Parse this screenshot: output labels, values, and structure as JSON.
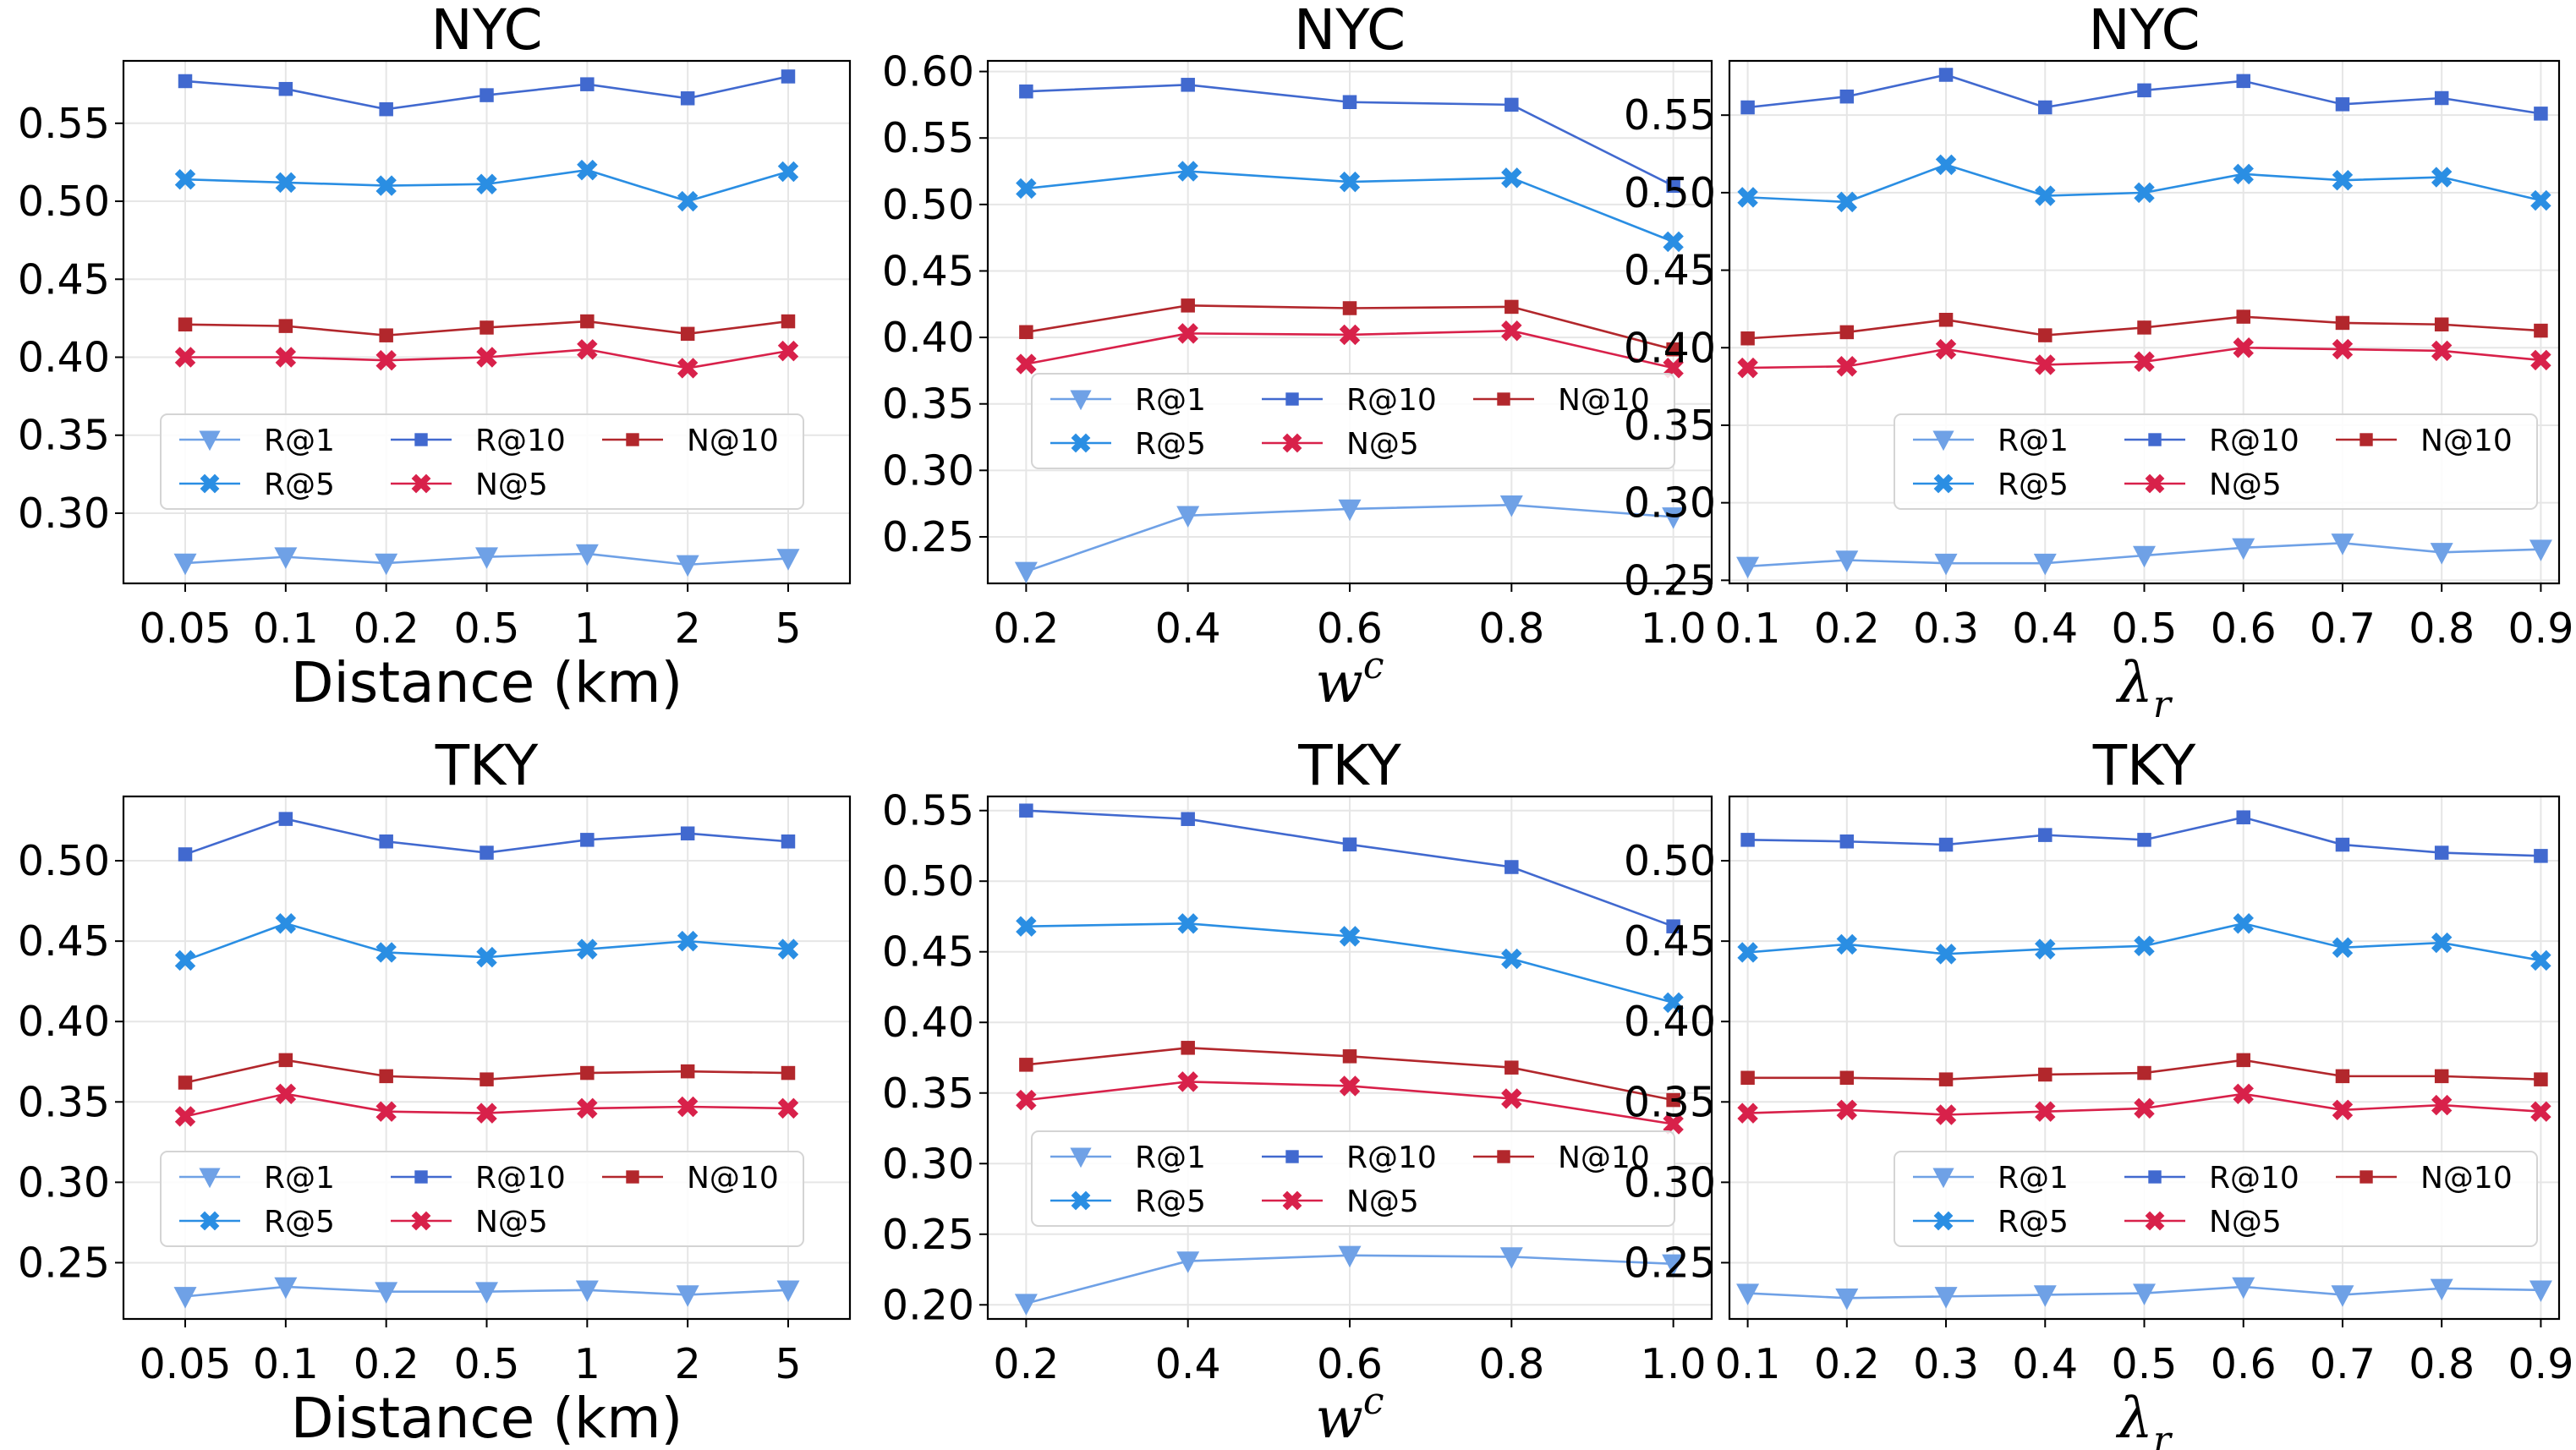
{
  "colors": {
    "r1": "#6fa1e6",
    "r5": "#2a8ee3",
    "r10": "#4169cf",
    "n10": "#b2272c",
    "n5": "#d8214a",
    "grid": "#e6e6e6"
  },
  "chart_data": [
    {
      "type": "line",
      "title": "NYC",
      "xlabel": "Distance (km)",
      "x_label_style": "plain",
      "categories": [
        "0.05",
        "0.1",
        "0.2",
        "0.5",
        "1",
        "2",
        "5"
      ],
      "ylim": [
        0.255,
        0.59
      ],
      "yticks": [
        "0.30",
        "0.35",
        "0.40",
        "0.45",
        "0.50",
        "0.55"
      ],
      "legend": "lower-center",
      "grid": true,
      "series": [
        {
          "name": "R@1",
          "key": "r1",
          "marker": "triangle",
          "values": [
            0.268,
            0.272,
            0.268,
            0.272,
            0.274,
            0.267,
            0.271
          ]
        },
        {
          "name": "R@5",
          "key": "r5",
          "marker": "x",
          "values": [
            0.514,
            0.512,
            0.51,
            0.511,
            0.52,
            0.5,
            0.519
          ]
        },
        {
          "name": "R@10",
          "key": "r10",
          "marker": "square",
          "values": [
            0.577,
            0.572,
            0.559,
            0.568,
            0.575,
            0.566,
            0.58
          ]
        },
        {
          "name": "N@5",
          "key": "n5",
          "marker": "x",
          "values": [
            0.4,
            0.4,
            0.398,
            0.4,
            0.405,
            0.393,
            0.404
          ]
        },
        {
          "name": "N@10",
          "key": "n10",
          "marker": "square",
          "values": [
            0.421,
            0.42,
            0.414,
            0.419,
            0.423,
            0.415,
            0.423
          ]
        }
      ]
    },
    {
      "type": "line",
      "title": "NYC",
      "xlabel": "w",
      "xlabel_sup": "c",
      "x_label_style": "math",
      "categories": [
        "0.2",
        "0.4",
        "0.6",
        "0.8",
        "1.0"
      ],
      "ylim": [
        0.215,
        0.608
      ],
      "yticks": [
        "0.25",
        "0.30",
        "0.35",
        "0.40",
        "0.45",
        "0.50",
        "0.55",
        "0.60"
      ],
      "legend": "center",
      "grid": true,
      "series": [
        {
          "name": "R@1",
          "key": "r1",
          "marker": "triangle",
          "values": [
            0.224,
            0.266,
            0.271,
            0.274,
            0.265
          ]
        },
        {
          "name": "R@5",
          "key": "r5",
          "marker": "x",
          "values": [
            0.512,
            0.525,
            0.517,
            0.52,
            0.472
          ]
        },
        {
          "name": "R@10",
          "key": "r10",
          "marker": "square",
          "values": [
            0.585,
            0.59,
            0.577,
            0.575,
            0.514
          ]
        },
        {
          "name": "N@5",
          "key": "n5",
          "marker": "x",
          "values": [
            0.38,
            0.403,
            0.402,
            0.405,
            0.377
          ]
        },
        {
          "name": "N@10",
          "key": "n10",
          "marker": "square",
          "values": [
            0.404,
            0.424,
            0.422,
            0.423,
            0.391
          ]
        }
      ]
    },
    {
      "type": "line",
      "title": "NYC",
      "xlabel": "λ",
      "xlabel_sub": "r",
      "x_label_style": "math",
      "categories": [
        "0.1",
        "0.2",
        "0.3",
        "0.4",
        "0.5",
        "0.6",
        "0.7",
        "0.8",
        "0.9"
      ],
      "ylim": [
        0.248,
        0.585
      ],
      "yticks": [
        "0.25",
        "0.30",
        "0.35",
        "0.40",
        "0.45",
        "0.50",
        "0.55"
      ],
      "legend": "lower-center",
      "grid": true,
      "series": [
        {
          "name": "R@1",
          "key": "r1",
          "marker": "triangle",
          "values": [
            0.259,
            0.263,
            0.261,
            0.261,
            0.266,
            0.271,
            0.274,
            0.268,
            0.27
          ]
        },
        {
          "name": "R@5",
          "key": "r5",
          "marker": "x",
          "values": [
            0.497,
            0.494,
            0.518,
            0.498,
            0.5,
            0.512,
            0.508,
            0.51,
            0.495
          ]
        },
        {
          "name": "R@10",
          "key": "r10",
          "marker": "square",
          "values": [
            0.555,
            0.562,
            0.576,
            0.555,
            0.566,
            0.572,
            0.557,
            0.561,
            0.551
          ]
        },
        {
          "name": "N@5",
          "key": "n5",
          "marker": "x",
          "values": [
            0.387,
            0.388,
            0.399,
            0.389,
            0.391,
            0.4,
            0.399,
            0.398,
            0.392
          ]
        },
        {
          "name": "N@10",
          "key": "n10",
          "marker": "square",
          "values": [
            0.406,
            0.41,
            0.418,
            0.408,
            0.413,
            0.42,
            0.416,
            0.415,
            0.411
          ]
        }
      ]
    },
    {
      "type": "line",
      "title": "TKY",
      "xlabel": "Distance (km)",
      "x_label_style": "plain",
      "categories": [
        "0.05",
        "0.1",
        "0.2",
        "0.5",
        "1",
        "2",
        "5"
      ],
      "ylim": [
        0.215,
        0.54
      ],
      "yticks": [
        "0.25",
        "0.30",
        "0.35",
        "0.40",
        "0.45",
        "0.50"
      ],
      "legend": "lower-center",
      "grid": true,
      "series": [
        {
          "name": "R@1",
          "key": "r1",
          "marker": "triangle",
          "values": [
            0.229,
            0.235,
            0.232,
            0.232,
            0.233,
            0.23,
            0.233
          ]
        },
        {
          "name": "R@5",
          "key": "r5",
          "marker": "x",
          "values": [
            0.438,
            0.461,
            0.443,
            0.44,
            0.445,
            0.45,
            0.445
          ]
        },
        {
          "name": "R@10",
          "key": "r10",
          "marker": "square",
          "values": [
            0.504,
            0.526,
            0.512,
            0.505,
            0.513,
            0.517,
            0.512
          ]
        },
        {
          "name": "N@5",
          "key": "n5",
          "marker": "x",
          "values": [
            0.341,
            0.355,
            0.344,
            0.343,
            0.346,
            0.347,
            0.346
          ]
        },
        {
          "name": "N@10",
          "key": "n10",
          "marker": "square",
          "values": [
            0.362,
            0.376,
            0.366,
            0.364,
            0.368,
            0.369,
            0.368
          ]
        }
      ]
    },
    {
      "type": "line",
      "title": "TKY",
      "xlabel": "w",
      "xlabel_sup": "c",
      "x_label_style": "math",
      "categories": [
        "0.2",
        "0.4",
        "0.6",
        "0.8",
        "1.0"
      ],
      "ylim": [
        0.19,
        0.56
      ],
      "yticks": [
        "0.20",
        "0.25",
        "0.30",
        "0.35",
        "0.40",
        "0.45",
        "0.50",
        "0.55"
      ],
      "legend": "center",
      "grid": true,
      "series": [
        {
          "name": "R@1",
          "key": "r1",
          "marker": "triangle",
          "values": [
            0.201,
            0.231,
            0.235,
            0.234,
            0.229
          ]
        },
        {
          "name": "R@5",
          "key": "r5",
          "marker": "x",
          "values": [
            0.468,
            0.47,
            0.461,
            0.445,
            0.414
          ]
        },
        {
          "name": "R@10",
          "key": "r10",
          "marker": "square",
          "values": [
            0.55,
            0.544,
            0.526,
            0.51,
            0.468
          ]
        },
        {
          "name": "N@5",
          "key": "n5",
          "marker": "x",
          "values": [
            0.345,
            0.358,
            0.355,
            0.346,
            0.328
          ]
        },
        {
          "name": "N@10",
          "key": "n10",
          "marker": "square",
          "values": [
            0.37,
            0.382,
            0.376,
            0.368,
            0.345
          ]
        }
      ]
    },
    {
      "type": "line",
      "title": "TKY",
      "xlabel": "λ",
      "xlabel_sub": "r",
      "x_label_style": "math",
      "categories": [
        "0.1",
        "0.2",
        "0.3",
        "0.4",
        "0.5",
        "0.6",
        "0.7",
        "0.8",
        "0.9"
      ],
      "ylim": [
        0.215,
        0.54
      ],
      "yticks": [
        "0.25",
        "0.30",
        "0.35",
        "0.40",
        "0.45",
        "0.50"
      ],
      "legend": "lower-center",
      "grid": true,
      "series": [
        {
          "name": "R@1",
          "key": "r1",
          "marker": "triangle",
          "values": [
            0.231,
            0.228,
            0.229,
            0.23,
            0.231,
            0.235,
            0.23,
            0.234,
            0.233
          ]
        },
        {
          "name": "R@5",
          "key": "r5",
          "marker": "x",
          "values": [
            0.443,
            0.448,
            0.442,
            0.445,
            0.447,
            0.461,
            0.446,
            0.449,
            0.438
          ]
        },
        {
          "name": "R@10",
          "key": "r10",
          "marker": "square",
          "values": [
            0.513,
            0.512,
            0.51,
            0.516,
            0.513,
            0.527,
            0.51,
            0.505,
            0.503
          ]
        },
        {
          "name": "N@5",
          "key": "n5",
          "marker": "x",
          "values": [
            0.343,
            0.345,
            0.342,
            0.344,
            0.346,
            0.355,
            0.345,
            0.348,
            0.344
          ]
        },
        {
          "name": "N@10",
          "key": "n10",
          "marker": "square",
          "values": [
            0.365,
            0.365,
            0.364,
            0.367,
            0.368,
            0.376,
            0.366,
            0.366,
            0.364
          ]
        }
      ]
    }
  ]
}
